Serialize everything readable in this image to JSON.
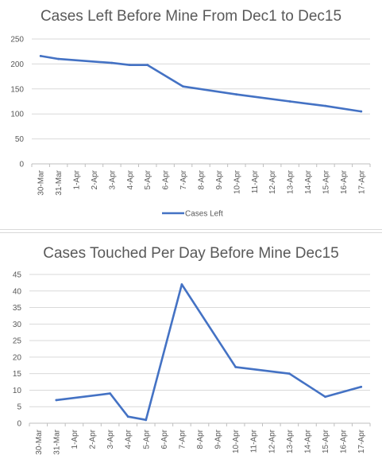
{
  "chart_data": [
    {
      "type": "line",
      "title": "Cases Left Before Mine From Dec1 to Dec15",
      "xlabel": "",
      "ylabel": "",
      "categories": [
        "30-Mar",
        "31-Mar",
        "1-Apr",
        "2-Apr",
        "3-Apr",
        "4-Apr",
        "5-Apr",
        "6-Apr",
        "7-Apr",
        "8-Apr",
        "9-Apr",
        "10-Apr",
        "11-Apr",
        "12-Apr",
        "13-Apr",
        "14-Apr",
        "15-Apr",
        "16-Apr",
        "17-Apr"
      ],
      "series": [
        {
          "name": "Cases Left",
          "values": [
            216,
            210,
            null,
            null,
            202,
            198,
            198,
            null,
            155,
            null,
            null,
            139,
            null,
            null,
            125,
            null,
            116,
            null,
            105
          ]
        }
      ],
      "ylim": [
        0,
        250
      ],
      "yticks": [
        0,
        50,
        100,
        150,
        200,
        250
      ],
      "grid": true,
      "legend": "bottom",
      "color": "#4472c4"
    },
    {
      "type": "line",
      "title": "Cases Touched Per Day Before Mine Dec15",
      "xlabel": "",
      "ylabel": "",
      "categories": [
        "30-Mar",
        "31-Mar",
        "1-Apr",
        "2-Apr",
        "3-Apr",
        "4-Apr",
        "5-Apr",
        "6-Apr",
        "7-Apr",
        "8-Apr",
        "9-Apr",
        "10-Apr",
        "11-Apr",
        "12-Apr",
        "13-Apr",
        "14-Apr",
        "15-Apr",
        "16-Apr",
        "17-Apr"
      ],
      "series": [
        {
          "values": [
            null,
            7,
            null,
            null,
            9,
            2,
            1,
            null,
            42,
            null,
            null,
            17,
            null,
            null,
            15,
            null,
            8,
            null,
            11
          ]
        }
      ],
      "ylim": [
        0,
        45
      ],
      "yticks": [
        0,
        5,
        10,
        15,
        20,
        25,
        30,
        35,
        40,
        45
      ],
      "grid": true,
      "legend": "none",
      "color": "#4472c4"
    }
  ]
}
